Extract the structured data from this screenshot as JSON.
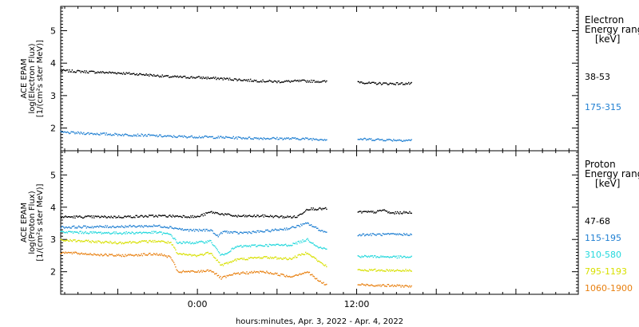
{
  "chart_data": [
    {
      "type": "scatter",
      "panel": "electron",
      "ylabel": [
        "ACE EPAM",
        "log(Electron Flux)",
        "[1/(cm²s ster MeV)]"
      ],
      "ylim": [
        1.3,
        5.75
      ],
      "yticks": [
        2,
        3,
        4,
        5
      ],
      "legend": {
        "title": [
          "Electron",
          "Energy ranges",
          "[keV]"
        ],
        "entries": [
          {
            "label": "38-53",
            "color": "#000000"
          },
          {
            "label": "175-315",
            "color": "#1f7fd2"
          }
        ]
      },
      "series": [
        {
          "name": "38-53",
          "color": "#000000",
          "segments": [
            [
              [
                -10.3,
                3.77
              ],
              [
                -8,
                3.73
              ],
              [
                -6,
                3.7
              ],
              [
                -4,
                3.65
              ],
              [
                -2,
                3.58
              ],
              [
                0,
                3.56
              ],
              [
                2,
                3.52
              ],
              [
                4,
                3.47
              ],
              [
                6,
                3.43
              ],
              [
                8,
                3.45
              ],
              [
                9.8,
                3.43
              ]
            ],
            [
              [
                12.1,
                3.43
              ],
              [
                13,
                3.38
              ],
              [
                14.5,
                3.37
              ],
              [
                16.2,
                3.37
              ]
            ]
          ]
        },
        {
          "name": "175-315",
          "color": "#1f7fd2",
          "segments": [
            [
              [
                -10.3,
                1.87
              ],
              [
                -8,
                1.83
              ],
              [
                -6,
                1.8
              ],
              [
                -4,
                1.78
              ],
              [
                -2,
                1.74
              ],
              [
                0,
                1.73
              ],
              [
                2,
                1.71
              ],
              [
                4,
                1.69
              ],
              [
                6,
                1.68
              ],
              [
                8,
                1.67
              ],
              [
                9.8,
                1.65
              ]
            ],
            [
              [
                12.1,
                1.66
              ],
              [
                14,
                1.64
              ],
              [
                16.2,
                1.62
              ]
            ]
          ]
        }
      ]
    },
    {
      "type": "scatter",
      "panel": "proton",
      "ylabel": [
        "ACE EPAM",
        "log(Proton Flux)",
        "[1/(cm²s ster MeV)]"
      ],
      "ylim": [
        1.3,
        5.75
      ],
      "yticks": [
        2,
        3,
        4,
        5
      ],
      "xlabel": "hours:minutes, Apr.  3, 2022 - Apr.  4, 2022",
      "xlim": [
        -10.3,
        28.7
      ],
      "xticks": [
        {
          "value": 0,
          "label": "0:00"
        },
        {
          "value": 12,
          "label": "12:00"
        }
      ],
      "legend": {
        "title": [
          "Proton",
          "Energy ranges",
          "[keV]"
        ],
        "entries": [
          {
            "label": "47-68",
            "color": "#000000"
          },
          {
            "label": "115-195",
            "color": "#1f7fd2"
          },
          {
            "label": "310-580",
            "color": "#22d8dc"
          },
          {
            "label": "795-1193",
            "color": "#d8e000"
          },
          {
            "label": "1060-1900",
            "color": "#e88010"
          }
        ]
      },
      "series": [
        {
          "name": "47-68",
          "color": "#000000",
          "segments": [
            [
              [
                -10.3,
                3.7
              ],
              [
                -6,
                3.7
              ],
              [
                -3,
                3.73
              ],
              [
                -1,
                3.72
              ],
              [
                0,
                3.7
              ],
              [
                1,
                3.85
              ],
              [
                2,
                3.78
              ],
              [
                3,
                3.72
              ],
              [
                5,
                3.73
              ],
              [
                6.5,
                3.7
              ],
              [
                7.5,
                3.7
              ],
              [
                8.3,
                3.95
              ],
              [
                9.8,
                3.95
              ]
            ],
            [
              [
                12.1,
                3.85
              ],
              [
                13.5,
                3.85
              ],
              [
                14,
                3.92
              ],
              [
                14.5,
                3.82
              ],
              [
                16.2,
                3.84
              ]
            ]
          ]
        },
        {
          "name": "115-195",
          "color": "#1f7fd2",
          "segments": [
            [
              [
                -10.3,
                3.38
              ],
              [
                -6,
                3.4
              ],
              [
                -3,
                3.42
              ],
              [
                -2,
                3.38
              ],
              [
                -1,
                3.3
              ],
              [
                0,
                3.28
              ],
              [
                1,
                3.3
              ],
              [
                1.5,
                3.1
              ],
              [
                2,
                3.25
              ],
              [
                3,
                3.2
              ],
              [
                5,
                3.25
              ],
              [
                7,
                3.35
              ],
              [
                8.3,
                3.5
              ],
              [
                9.2,
                3.3
              ],
              [
                9.8,
                3.2
              ]
            ],
            [
              [
                12.1,
                3.15
              ],
              [
                16.2,
                3.16
              ]
            ]
          ]
        },
        {
          "name": "310-580",
          "color": "#22d8dc",
          "segments": [
            [
              [
                -10.3,
                3.23
              ],
              [
                -6,
                3.2
              ],
              [
                -3,
                3.22
              ],
              [
                -2,
                3.15
              ],
              [
                -1.5,
                2.9
              ],
              [
                0,
                2.9
              ],
              [
                1,
                2.95
              ],
              [
                1.8,
                2.5
              ],
              [
                3,
                2.78
              ],
              [
                5,
                2.82
              ],
              [
                7,
                2.83
              ],
              [
                8.3,
                3.0
              ],
              [
                9.2,
                2.75
              ],
              [
                9.8,
                2.7
              ]
            ],
            [
              [
                12.1,
                2.48
              ],
              [
                16.2,
                2.45
              ]
            ]
          ]
        },
        {
          "name": "795-1193",
          "color": "#d8e000",
          "segments": [
            [
              [
                -10.3,
                2.98
              ],
              [
                -6,
                2.9
              ],
              [
                -3,
                2.95
              ],
              [
                -2,
                2.9
              ],
              [
                -1.5,
                2.55
              ],
              [
                0,
                2.5
              ],
              [
                1,
                2.6
              ],
              [
                1.8,
                2.2
              ],
              [
                3,
                2.38
              ],
              [
                5,
                2.45
              ],
              [
                7,
                2.4
              ],
              [
                8.3,
                2.6
              ],
              [
                9.2,
                2.3
              ],
              [
                9.8,
                2.15
              ]
            ],
            [
              [
                12.1,
                2.05
              ],
              [
                16.2,
                2.04
              ]
            ]
          ]
        },
        {
          "name": "1060-1900",
          "color": "#e88010",
          "segments": [
            [
              [
                -10.3,
                2.6
              ],
              [
                -6,
                2.5
              ],
              [
                -3,
                2.55
              ],
              [
                -2,
                2.45
              ],
              [
                -1.5,
                2.0
              ],
              [
                0,
                2.0
              ],
              [
                1,
                2.05
              ],
              [
                1.8,
                1.8
              ],
              [
                3,
                1.95
              ],
              [
                5,
                2.0
              ],
              [
                7,
                1.85
              ],
              [
                8.3,
                2.0
              ],
              [
                9.2,
                1.7
              ],
              [
                9.8,
                1.58
              ]
            ],
            [
              [
                12.1,
                1.6
              ],
              [
                16.2,
                1.55
              ]
            ]
          ]
        }
      ]
    }
  ]
}
